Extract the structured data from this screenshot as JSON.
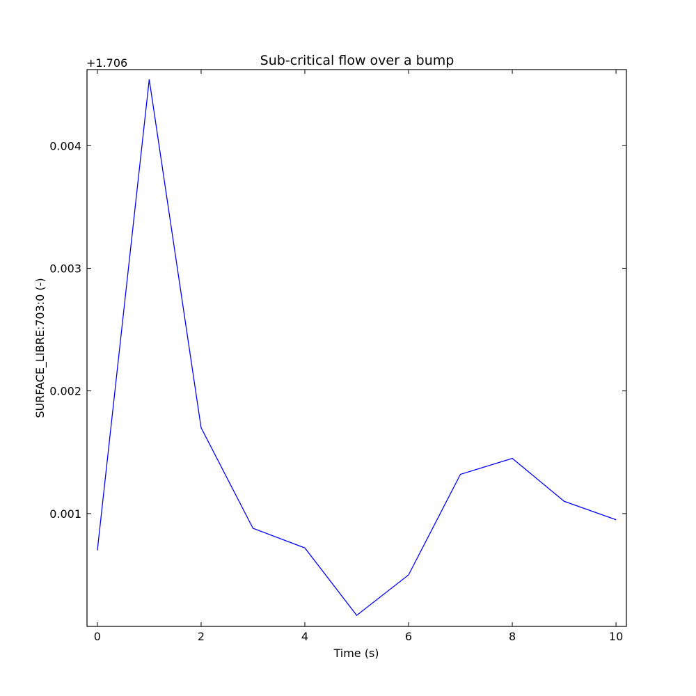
{
  "chart_data": {
    "type": "line",
    "title": "Sub-critical flow over a bump",
    "xlabel": "Time (s)",
    "ylabel": "SURFACE_LIBRE:703:0 (-)",
    "y_offset_label": "+1.706",
    "y_offset": 1.706,
    "xlim": [
      -0.2,
      10.2
    ],
    "ylim": [
      8e-05,
      0.00462
    ],
    "x_ticks": [
      0,
      2,
      4,
      6,
      8,
      10
    ],
    "x_tick_labels": [
      "0",
      "2",
      "4",
      "6",
      "8",
      "10"
    ],
    "y_ticks": [
      0.001,
      0.002,
      0.003,
      0.004
    ],
    "y_tick_labels": [
      "0.001",
      "0.002",
      "0.003",
      "0.004"
    ],
    "grid": false,
    "series": [
      {
        "color": "#0000ff",
        "x": [
          0,
          1,
          2,
          3,
          4,
          5,
          6,
          7,
          8,
          9,
          10
        ],
        "y": [
          0.0007,
          0.00454,
          0.0017,
          0.00088,
          0.00072,
          0.00017,
          0.0005,
          0.00132,
          0.00145,
          0.0011,
          0.00095
        ]
      }
    ]
  }
}
